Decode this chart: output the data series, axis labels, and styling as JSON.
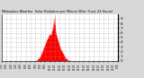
{
  "title": "Milwaukee Weather  Solar Radiation per Minute W/m² (Last 24 Hours)",
  "bg_color": "#d8d8d8",
  "plot_bg_color": "#ffffff",
  "fill_color": "#ff0000",
  "line_color": "#bb0000",
  "grid_color": "#999999",
  "ylim": [
    0,
    1000
  ],
  "yticks": [
    0,
    100,
    200,
    300,
    400,
    500,
    600,
    700,
    800,
    900
  ],
  "ytick_labels": [
    "0",
    "1",
    "2",
    "3",
    "4",
    "5",
    "6",
    "7",
    "8",
    "9"
  ],
  "n_points": 1440,
  "data_profile": [
    [
      0,
      0
    ],
    [
      380,
      0
    ],
    [
      400,
      2
    ],
    [
      420,
      8
    ],
    [
      440,
      25
    ],
    [
      460,
      60
    ],
    [
      475,
      100
    ],
    [
      490,
      150
    ],
    [
      505,
      210
    ],
    [
      515,
      260
    ],
    [
      522,
      290
    ],
    [
      528,
      320
    ],
    [
      533,
      340
    ],
    [
      538,
      360
    ],
    [
      543,
      385
    ],
    [
      548,
      405
    ],
    [
      553,
      425
    ],
    [
      558,
      445
    ],
    [
      563,
      465
    ],
    [
      568,
      480
    ],
    [
      572,
      495
    ],
    [
      576,
      510
    ],
    [
      580,
      525
    ],
    [
      584,
      535
    ],
    [
      588,
      548
    ],
    [
      591,
      555
    ],
    [
      594,
      562
    ],
    [
      597,
      568
    ],
    [
      600,
      572
    ],
    [
      603,
      576
    ],
    [
      606,
      578
    ],
    [
      608,
      565
    ],
    [
      610,
      545
    ],
    [
      612,
      558
    ],
    [
      614,
      572
    ],
    [
      616,
      585
    ],
    [
      618,
      598
    ],
    [
      620,
      612
    ],
    [
      622,
      626
    ],
    [
      624,
      640
    ],
    [
      626,
      655
    ],
    [
      628,
      668
    ],
    [
      630,
      682
    ],
    [
      632,
      695
    ],
    [
      634,
      700
    ],
    [
      636,
      650
    ],
    [
      637,
      680
    ],
    [
      638,
      670
    ],
    [
      639,
      720
    ],
    [
      640,
      760
    ],
    [
      641,
      800
    ],
    [
      642,
      840
    ],
    [
      643,
      880
    ],
    [
      644,
      900
    ],
    [
      645,
      870
    ],
    [
      646,
      840
    ],
    [
      647,
      810
    ],
    [
      648,
      790
    ],
    [
      649,
      760
    ],
    [
      650,
      730
    ],
    [
      651,
      760
    ],
    [
      652,
      800
    ],
    [
      653,
      840
    ],
    [
      654,
      880
    ],
    [
      655,
      920
    ],
    [
      656,
      960
    ],
    [
      657,
      980
    ],
    [
      658,
      940
    ],
    [
      659,
      900
    ],
    [
      660,
      860
    ],
    [
      661,
      820
    ],
    [
      662,
      790
    ],
    [
      663,
      760
    ],
    [
      664,
      730
    ],
    [
      665,
      700
    ],
    [
      667,
      660
    ],
    [
      670,
      620
    ],
    [
      675,
      580
    ],
    [
      680,
      545
    ],
    [
      685,
      510
    ],
    [
      690,
      478
    ],
    [
      695,
      448
    ],
    [
      700,
      418
    ],
    [
      705,
      390
    ],
    [
      710,
      362
    ],
    [
      715,
      336
    ],
    [
      720,
      312
    ],
    [
      730,
      268
    ],
    [
      740,
      228
    ],
    [
      750,
      192
    ],
    [
      760,
      158
    ],
    [
      770,
      128
    ],
    [
      780,
      100
    ],
    [
      790,
      75
    ],
    [
      800,
      54
    ],
    [
      810,
      36
    ],
    [
      820,
      22
    ],
    [
      830,
      12
    ],
    [
      840,
      5
    ],
    [
      855,
      1
    ],
    [
      870,
      0
    ],
    [
      1440,
      0
    ]
  ]
}
